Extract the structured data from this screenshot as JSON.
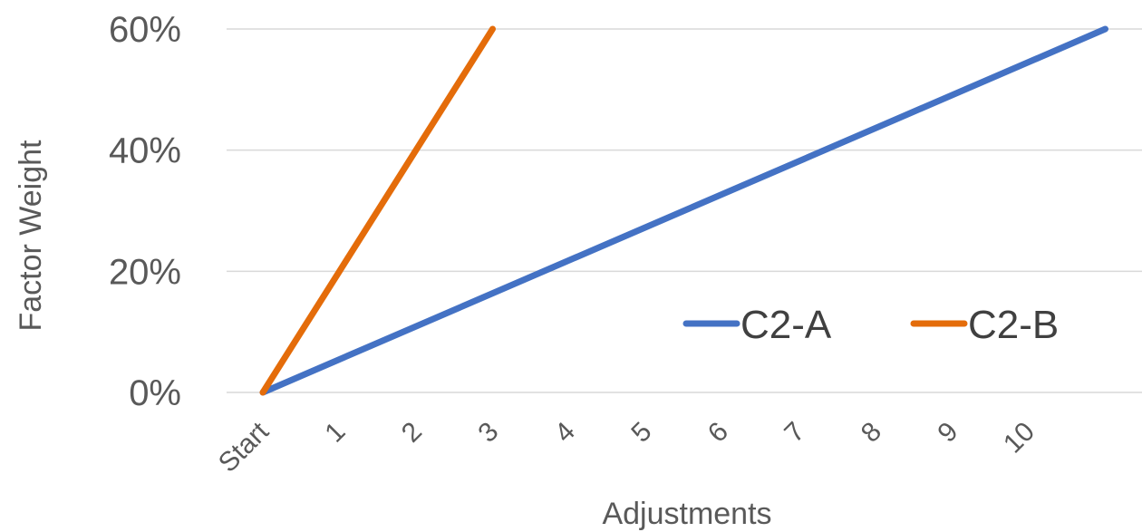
{
  "chart_data": {
    "type": "line",
    "title": "",
    "xlabel": "Adjustments",
    "ylabel": "Factor Weight",
    "categories": [
      "Start",
      "1",
      "2",
      "3",
      "4",
      "5",
      "6",
      "7",
      "8",
      "9",
      "10"
    ],
    "y_ticks": [
      "0%",
      "20%",
      "40%",
      "60%"
    ],
    "ylim": [
      0,
      0.6
    ],
    "grid": "horizontal",
    "legend_position": "right",
    "series": [
      {
        "name": "C2-A",
        "color": "#4472C4",
        "points": [
          [
            0,
            0
          ],
          [
            11,
            0.6
          ]
        ]
      },
      {
        "name": "C2-B",
        "color": "#E46C0A",
        "points": [
          [
            0,
            0
          ],
          [
            1,
            0.2
          ],
          [
            2,
            0.4
          ],
          [
            3,
            0.6
          ]
        ]
      }
    ]
  }
}
